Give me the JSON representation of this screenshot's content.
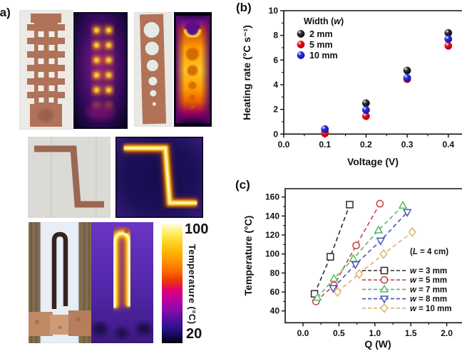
{
  "panels": {
    "a": "(a)",
    "b": "(b)",
    "c": "(c)"
  },
  "colorbar": {
    "max": "100",
    "min": "20",
    "title": "Temperature (°C)"
  },
  "chart_data": [
    {
      "id": "b",
      "type": "scatter",
      "xlabel": "Voltage (V)",
      "ylabel": "Heating rate (°C s⁻¹)",
      "xlim": [
        0,
        0.43
      ],
      "ylim": [
        0,
        10
      ],
      "grid": false,
      "legend_position": "upper-left-inside",
      "xticks": {
        "values": [
          0,
          0.1,
          0.2,
          0.3,
          0.4
        ],
        "labels": [
          "0.0",
          "0.1",
          "0.2",
          "0.3",
          "0.4"
        ]
      },
      "yticks": {
        "values": [
          0,
          2,
          4,
          6,
          8,
          10
        ],
        "labels": [
          "0",
          "2",
          "4",
          "6",
          "8",
          "10"
        ]
      },
      "legend_title": {
        "pre": "Width (",
        "var": "w",
        "post": ")"
      },
      "series": [
        {
          "name": "2 mm",
          "marker": "sphere",
          "color": "#333333",
          "shade": "#000000",
          "points": [
            [
              0.1,
              0.12
            ],
            [
              0.2,
              2.5
            ],
            [
              0.3,
              5.15
            ],
            [
              0.4,
              8.2
            ]
          ]
        },
        {
          "name": "5 mm",
          "marker": "sphere",
          "color": "#f51020",
          "shade": "#8e0008",
          "points": [
            [
              0.1,
              0.05
            ],
            [
              0.2,
              1.45
            ],
            [
              0.3,
              4.45
            ],
            [
              0.4,
              7.15
            ]
          ]
        },
        {
          "name": "10 mm",
          "marker": "sphere",
          "color": "#3030e0",
          "shade": "#101090",
          "points": [
            [
              0.1,
              0.4
            ],
            [
              0.2,
              1.95
            ],
            [
              0.3,
              4.55
            ],
            [
              0.4,
              7.7
            ]
          ]
        }
      ]
    },
    {
      "id": "c",
      "type": "line-scatter",
      "xlabel": "Q (W)",
      "ylabel": "Temperature (°C)",
      "xlim": [
        0,
        2.2
      ],
      "ylim": [
        40,
        165
      ],
      "grid": false,
      "legend_position": "lower-right-inside",
      "line_style": "dashed",
      "xticks": {
        "values": [
          0,
          0.5,
          1,
          1.5,
          2
        ],
        "labels": [
          "0.0",
          "0.5",
          "1.0",
          "1.5",
          "2.0"
        ]
      },
      "yticks": {
        "values": [
          40,
          60,
          80,
          100,
          120,
          140,
          160
        ],
        "labels": [
          "40",
          "60",
          "80",
          "100",
          "120",
          "140",
          "160"
        ]
      },
      "legend_title": {
        "pre": "(",
        "var": "L",
        "post": " = 4 cm)"
      },
      "series": [
        {
          "name_var": "w",
          "name_rest": " = 3 mm",
          "marker": "square",
          "color": "#2b2b2b",
          "points": [
            [
              0.16,
              58
            ],
            [
              0.38,
              97
            ],
            [
              0.65,
              152
            ]
          ]
        },
        {
          "name_var": "w",
          "name_rest": " = 5 mm",
          "marker": "circle",
          "color": "#c8414b",
          "points": [
            [
              0.18,
              50
            ],
            [
              0.43,
              67
            ],
            [
              0.74,
              109
            ],
            [
              1.07,
              153
            ]
          ]
        },
        {
          "name_var": "w",
          "name_rest": " = 7 mm",
          "marker": "triangle-up",
          "color": "#58b868",
          "points": [
            [
              0.2,
              54
            ],
            [
              0.43,
              74
            ],
            [
              0.7,
              95
            ],
            [
              1.05,
              125
            ],
            [
              1.39,
              151
            ]
          ]
        },
        {
          "name_var": "w",
          "name_rest": " = 8 mm",
          "marker": "triangle-down",
          "color": "#4653b0",
          "points": [
            [
              0.42,
              64
            ],
            [
              0.73,
              89
            ],
            [
              1.08,
              114
            ],
            [
              1.45,
              144
            ]
          ]
        },
        {
          "name_var": "w",
          "name_rest": " = 10 mm",
          "marker": "diamond",
          "color": "#ddb26a",
          "points": [
            [
              0.48,
              60
            ],
            [
              0.78,
              79
            ],
            [
              1.12,
              100
            ],
            [
              1.52,
              123
            ]
          ]
        }
      ]
    }
  ]
}
